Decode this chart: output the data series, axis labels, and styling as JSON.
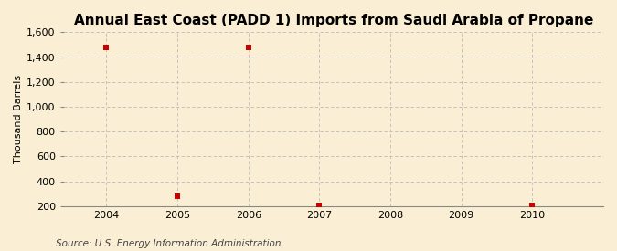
{
  "title": "Annual East Coast (PADD 1) Imports from Saudi Arabia of Propane",
  "ylabel": "Thousand Barrels",
  "source": "Source: U.S. Energy Information Administration",
  "background_color": "#faefd4",
  "plot_background_color": "#faefd4",
  "x_values": [
    2004,
    2005,
    2006,
    2007,
    2010
  ],
  "y_values": [
    1480,
    280,
    1480,
    205,
    210
  ],
  "x_ticks": [
    2004,
    2005,
    2006,
    2007,
    2008,
    2009,
    2010
  ],
  "ylim": [
    200,
    1600
  ],
  "yticks": [
    200,
    400,
    600,
    800,
    1000,
    1200,
    1400,
    1600
  ],
  "marker_color": "#cc0000",
  "marker_size": 4,
  "grid_color": "#bbbbbb",
  "title_fontsize": 11,
  "label_fontsize": 8,
  "tick_fontsize": 8,
  "source_fontsize": 7.5,
  "xlim_left": 2003.4,
  "xlim_right": 2011.0
}
